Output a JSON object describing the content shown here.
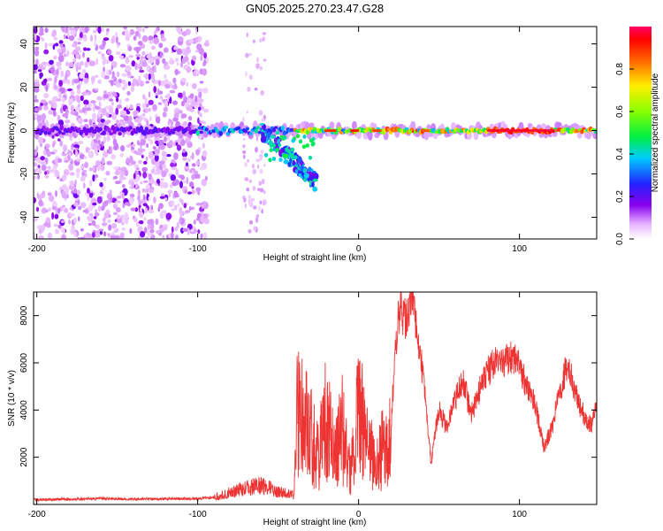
{
  "title": "GN05.2025.270.23.47.G28",
  "chart_data": [
    {
      "type": "heatmap",
      "title": "GN05.2025.270.23.47.G28",
      "xlabel": "Height of straight line (km)",
      "ylabel": "Frequency (Hz)",
      "xlim": [
        -202,
        148
      ],
      "ylim": [
        -50,
        48
      ],
      "xticks": [
        -200,
        -100,
        0,
        100
      ],
      "yticks": [
        -40,
        -20,
        0,
        20,
        40
      ],
      "colorbar": {
        "label": "Normalized spectral amplitude",
        "range": [
          0.0,
          1.0
        ],
        "ticks": [
          0.0,
          0.2,
          0.4,
          0.6,
          0.8
        ],
        "tick_labels": [
          "0.0",
          "0.2",
          "0.4",
          "0.6",
          "0.8"
        ]
      },
      "features": [
        {
          "region": "noise",
          "x_range": [
            -202,
            -93
          ],
          "freq_range": [
            -50,
            48
          ],
          "amplitude": 0.05
        },
        {
          "region": "sparse-noise",
          "x_range": [
            -72,
            -58
          ],
          "freq_range": [
            -50,
            45
          ],
          "amplitude": 0.03
        },
        {
          "region": "carrier",
          "x_range": [
            -100,
            148
          ],
          "freq_center": 0,
          "amplitude_peak": 1.0
        },
        {
          "region": "branch",
          "x_range": [
            -60,
            -25
          ],
          "freq_range": [
            -30,
            5
          ],
          "amplitude": 0.4
        }
      ]
    },
    {
      "type": "line",
      "xlabel": "Height of straight line (km)",
      "ylabel": "SNR (10 * v/v)",
      "xlim": [
        -202,
        148
      ],
      "ylim": [
        0,
        9000
      ],
      "xticks": [
        -200,
        -100,
        0,
        100
      ],
      "yticks": [
        2000,
        4000,
        6000,
        8000
      ],
      "series": [
        {
          "name": "SNR",
          "color": "#ee3333",
          "x": [
            -202,
            -180,
            -160,
            -140,
            -120,
            -100,
            -90,
            -80,
            -70,
            -60,
            -50,
            -40,
            -38,
            -30,
            -25,
            -20,
            -15,
            -10,
            -5,
            0,
            5,
            10,
            15,
            20,
            22,
            25,
            30,
            33,
            35,
            40,
            45,
            50,
            55,
            60,
            65,
            70,
            75,
            80,
            85,
            90,
            95,
            100,
            105,
            110,
            115,
            120,
            125,
            130,
            135,
            140,
            145,
            148
          ],
          "values": [
            200,
            220,
            250,
            230,
            240,
            250,
            300,
            500,
            700,
            800,
            550,
            400,
            4000,
            3000,
            2000,
            3800,
            2000,
            3200,
            1200,
            3900,
            3000,
            1600,
            2400,
            2700,
            5800,
            8200,
            7900,
            8900,
            8000,
            5500,
            1800,
            4000,
            3200,
            4500,
            5200,
            3800,
            4800,
            5600,
            6000,
            5900,
            6300,
            5800,
            5000,
            4200,
            2400,
            3200,
            4800,
            6000,
            4600,
            3800,
            3300,
            4200
          ]
        }
      ]
    }
  ]
}
